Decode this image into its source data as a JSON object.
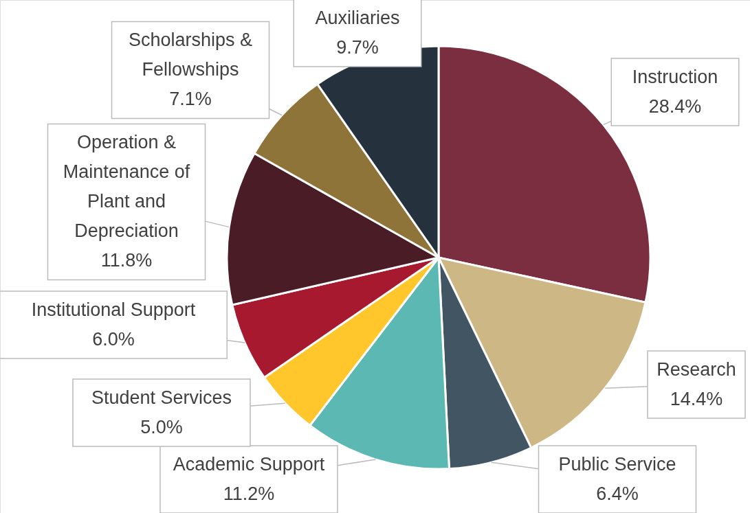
{
  "chart_data": {
    "type": "pie",
    "categories": [
      "Instruction",
      "Research",
      "Public Service",
      "Academic Support",
      "Student Services",
      "Institutional Support",
      "Operation & Maintenance of Plant and Depreciation",
      "Scholarships & Fellowships",
      "Auxiliaries"
    ],
    "values": [
      28.4,
      14.4,
      6.4,
      11.2,
      5.0,
      6.0,
      11.8,
      7.1,
      9.7
    ],
    "colors": [
      "#7a2e40",
      "#cdb784",
      "#425563",
      "#5cb8b2",
      "#ffc72c",
      "#a6192e",
      "#4a1c26",
      "#8f7439",
      "#25313c"
    ],
    "value_labels": [
      "28.4%",
      "14.4%",
      "6.4%",
      "11.2%",
      "5.0%",
      "6.0%",
      "11.8%",
      "7.1%",
      "9.7%"
    ]
  }
}
